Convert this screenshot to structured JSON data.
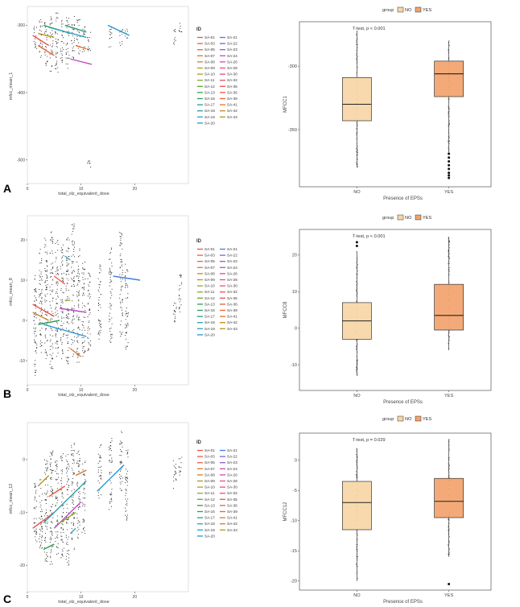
{
  "colors": {
    "no_fill": "#f7d6a6",
    "yes_fill": "#f2a36c",
    "box_stroke": "#333333",
    "scatter_point": "#222222",
    "panel_border": "#cccccc",
    "text": "#444444",
    "id_colors": [
      "#e8544c",
      "#ed5b43",
      "#e7623a",
      "#dd7430",
      "#c98326",
      "#b8941f",
      "#9fa222",
      "#84ab2c",
      "#5ca63b",
      "#2fa14e",
      "#2c9c67",
      "#2a9b86",
      "#2f9ea7",
      "#2ba4c2",
      "#2396d4",
      "#3f7fe0",
      "#6c68dc",
      "#9757d1",
      "#bd4cc2",
      "#d846ad",
      "#e64b93",
      "#ea4e7b",
      "#e9506a"
    ]
  },
  "legend": {
    "title": "ID",
    "ids": [
      "SA-01",
      "SA-03",
      "SA-05",
      "SA-07",
      "SA-08",
      "SA-09",
      "SA-10",
      "SA-11",
      "SA-12",
      "SA-13",
      "SA-16",
      "SA-17",
      "SA-18",
      "SA-19",
      "SA-20",
      "SA-21",
      "SA-22",
      "SA-23",
      "SA-24",
      "SA-26",
      "SA-28",
      "SA-30",
      "SA-32",
      "SA-35",
      "SA-36",
      "SA-39",
      "SA-41",
      "SA-42",
      "SA-43"
    ]
  },
  "chart_data": [
    {
      "panel_letter": "A",
      "type": "scatter",
      "title": "",
      "xlabel": "total_olz_equivalent_dose",
      "ylabel": "mfcc_mean_1",
      "xlim": [
        0,
        30
      ],
      "ylim": [
        -535,
        -272
      ],
      "x_ticks": [
        0,
        10,
        20
      ],
      "y_ticks": [
        -300,
        -400,
        -500
      ],
      "x_tick_labels": [
        "0",
        "10",
        "20"
      ],
      "y_tick_labels": [
        "-300",
        "-400",
        "-500"
      ],
      "columns": [
        {
          "x": 1.5,
          "lo": -340,
          "hi": -300
        },
        {
          "x": 2.5,
          "lo": -350,
          "hi": -290
        },
        {
          "x": 3.5,
          "lo": -360,
          "hi": -295
        },
        {
          "x": 4.5,
          "lo": -370,
          "hi": -285
        },
        {
          "x": 5.5,
          "lo": -375,
          "hi": -280
        },
        {
          "x": 6.5,
          "lo": -355,
          "hi": -290
        },
        {
          "x": 7.5,
          "lo": -365,
          "hi": -285
        },
        {
          "x": 8.5,
          "lo": -350,
          "hi": -282
        },
        {
          "x": 9.5,
          "lo": -345,
          "hi": -290
        },
        {
          "x": 10.5,
          "lo": -345,
          "hi": -300
        },
        {
          "x": 11.5,
          "lo": -340,
          "hi": -300
        },
        {
          "x": 15.5,
          "lo": -335,
          "hi": -300
        },
        {
          "x": 17.5,
          "lo": -330,
          "hi": -305
        },
        {
          "x": 18.5,
          "lo": -320,
          "hi": -305
        },
        {
          "x": 27.5,
          "lo": -330,
          "hi": -305
        },
        {
          "x": 28.5,
          "lo": -310,
          "hi": -295
        },
        {
          "x": 11.5,
          "lo": -515,
          "hi": -500
        }
      ],
      "lines": [
        {
          "x1": 1,
          "x2": 4,
          "y1": -315,
          "y2": -330,
          "color_index": 0
        },
        {
          "x1": 2,
          "x2": 5,
          "y1": -330,
          "y2": -345,
          "color_index": 2
        },
        {
          "x1": 3,
          "x2": 8,
          "y1": -300,
          "y2": -312,
          "color_index": 9
        },
        {
          "x1": 4,
          "x2": 11,
          "y1": -303,
          "y2": -318,
          "color_index": 13
        },
        {
          "x1": 7,
          "x2": 11,
          "y1": -300,
          "y2": -310,
          "color_index": 10
        },
        {
          "x1": 8,
          "x2": 12,
          "y1": -350,
          "y2": -358,
          "color_index": 18
        },
        {
          "x1": 15,
          "x2": 19,
          "y1": -300,
          "y2": -315,
          "color_index": 14
        },
        {
          "x1": 9,
          "x2": 11,
          "y1": -330,
          "y2": -335,
          "color_index": 3
        },
        {
          "x1": 2,
          "x2": 5,
          "y1": -312,
          "y2": -318,
          "color_index": 5
        }
      ]
    },
    {
      "panel_letter": "A",
      "type": "box",
      "title": "",
      "annotation": "T-test,  p < 0.001",
      "xlabel": "Presence of EPSs",
      "ylabel": "MFCC1",
      "legend_title": "group",
      "categories": [
        "NO",
        "YES"
      ],
      "ylim": [
        -395,
        -265
      ],
      "y_ticks": [
        -300,
        -350
      ],
      "y_tick_labels": [
        "-300",
        "-350"
      ],
      "groups": [
        {
          "name": "NO",
          "q1": -343,
          "median": -330,
          "q3": -309,
          "whisker_low": -380,
          "whisker_high": -272,
          "outliers": []
        },
        {
          "name": "YES",
          "q1": -324,
          "median": -306,
          "q3": -296,
          "whisker_low": -368,
          "whisker_high": -280,
          "outliers": [
            -369,
            -372,
            -375,
            -378,
            -381,
            -384,
            -386,
            -388
          ]
        }
      ]
    },
    {
      "panel_letter": "B",
      "type": "scatter",
      "title": "",
      "xlabel": "total_olz_equivalent_dose",
      "ylabel": "mfcc_mean_8",
      "xlim": [
        0,
        30
      ],
      "ylim": [
        -16,
        26
      ],
      "x_ticks": [
        0,
        10,
        20
      ],
      "y_ticks": [
        20,
        10,
        0,
        -10
      ],
      "x_tick_labels": [
        "0",
        "10",
        "20"
      ],
      "y_tick_labels": [
        "20",
        "10",
        "0",
        "-10"
      ],
      "columns": [
        {
          "x": 1.5,
          "lo": -14,
          "hi": 12
        },
        {
          "x": 2.5,
          "lo": -8,
          "hi": 18
        },
        {
          "x": 3.5,
          "lo": -10,
          "hi": 22
        },
        {
          "x": 4.5,
          "lo": -12,
          "hi": 22
        },
        {
          "x": 5.5,
          "lo": -9,
          "hi": 20
        },
        {
          "x": 6.5,
          "lo": -10,
          "hi": 19
        },
        {
          "x": 7.5,
          "lo": -12,
          "hi": 21
        },
        {
          "x": 8.5,
          "lo": -9,
          "hi": 24
        },
        {
          "x": 9.5,
          "lo": -11,
          "hi": 18
        },
        {
          "x": 10.5,
          "lo": -10,
          "hi": 15
        },
        {
          "x": 11.5,
          "lo": -8,
          "hi": 12
        },
        {
          "x": 13.5,
          "lo": -5,
          "hi": 14
        },
        {
          "x": 15.5,
          "lo": -6,
          "hi": 18
        },
        {
          "x": 17.5,
          "lo": -4,
          "hi": 22
        },
        {
          "x": 18.5,
          "lo": -8,
          "hi": 14
        },
        {
          "x": 27.5,
          "lo": -1,
          "hi": 6
        },
        {
          "x": 28.5,
          "lo": 2,
          "hi": 12
        }
      ],
      "lines": [
        {
          "x1": 1,
          "x2": 5,
          "y1": 4,
          "y2": 1,
          "color_index": 0
        },
        {
          "x1": 1,
          "x2": 4,
          "y1": 2,
          "y2": 0,
          "color_index": 4
        },
        {
          "x1": 2,
          "x2": 6,
          "y1": -1,
          "y2": 0,
          "color_index": 9
        },
        {
          "x1": 3,
          "x2": 11,
          "y1": -1,
          "y2": -4,
          "color_index": 14
        },
        {
          "x1": 5,
          "x2": 7,
          "y1": 11,
          "y2": 9,
          "color_index": 1
        },
        {
          "x1": 6,
          "x2": 11,
          "y1": 3,
          "y2": 2,
          "color_index": 18
        },
        {
          "x1": 7,
          "x2": 8,
          "y1": 16,
          "y2": 15,
          "color_index": 13
        },
        {
          "x1": 8,
          "x2": 10,
          "y1": -7,
          "y2": -9,
          "color_index": 3
        },
        {
          "x1": 16,
          "x2": 21,
          "y1": 11,
          "y2": 10,
          "color_index": 15
        },
        {
          "x1": 7,
          "x2": 8,
          "y1": 5,
          "y2": 5,
          "color_index": 6
        }
      ]
    },
    {
      "panel_letter": "B",
      "type": "box",
      "title": "",
      "annotation": "T-test,  p < 0.001",
      "xlabel": "Presence of EPSs",
      "ylabel": "MFCC8",
      "legend_title": "group",
      "categories": [
        "NO",
        "YES"
      ],
      "ylim": [
        -17,
        27
      ],
      "y_ticks": [
        20,
        10,
        0,
        -10
      ],
      "y_tick_labels": [
        "20",
        "10",
        "0",
        "-10"
      ],
      "groups": [
        {
          "name": "NO",
          "q1": -3,
          "median": 2,
          "q3": 7,
          "whisker_low": -13,
          "whisker_high": 21,
          "outliers": [
            22.5,
            23.5
          ]
        },
        {
          "name": "YES",
          "q1": -0.5,
          "median": 3.5,
          "q3": 12,
          "whisker_low": -6,
          "whisker_high": 25,
          "outliers": []
        }
      ]
    },
    {
      "panel_letter": "C",
      "type": "scatter",
      "title": "",
      "xlabel": "total_olz_equivalent_dose",
      "ylabel": "mfcc_mean_12",
      "xlim": [
        0,
        30
      ],
      "ylim": [
        -25,
        7
      ],
      "x_ticks": [
        0,
        10,
        20
      ],
      "y_ticks": [
        0,
        -10,
        -20
      ],
      "x_tick_labels": [
        "0",
        "10",
        "20"
      ],
      "y_tick_labels": [
        "0",
        "-10",
        "-20"
      ],
      "columns": [
        {
          "x": 1.5,
          "lo": -16,
          "hi": -4
        },
        {
          "x": 2.5,
          "lo": -17,
          "hi": -2
        },
        {
          "x": 3.5,
          "lo": -20,
          "hi": 0
        },
        {
          "x": 4.5,
          "lo": -22,
          "hi": 2
        },
        {
          "x": 5.5,
          "lo": -18,
          "hi": 0
        },
        {
          "x": 6.5,
          "lo": -19,
          "hi": 2
        },
        {
          "x": 7.5,
          "lo": -20,
          "hi": 1
        },
        {
          "x": 8.5,
          "lo": -17,
          "hi": 4
        },
        {
          "x": 9.5,
          "lo": -15,
          "hi": 2
        },
        {
          "x": 10.5,
          "lo": -14,
          "hi": 0
        },
        {
          "x": 13.5,
          "lo": -8,
          "hi": 3
        },
        {
          "x": 15.5,
          "lo": -10,
          "hi": 4
        },
        {
          "x": 17.5,
          "lo": -6,
          "hi": 6
        },
        {
          "x": 18.5,
          "lo": -12,
          "hi": 2
        },
        {
          "x": 27.5,
          "lo": -6,
          "hi": 0
        },
        {
          "x": 28.5,
          "lo": -3,
          "hi": 1
        }
      ],
      "lines": [
        {
          "x1": 1,
          "x2": 5,
          "y1": -13,
          "y2": -10,
          "color_index": 0
        },
        {
          "x1": 2,
          "x2": 4,
          "y1": -5,
          "y2": -3,
          "color_index": 5
        },
        {
          "x1": 3,
          "x2": 5,
          "y1": -17,
          "y2": -16,
          "color_index": 9
        },
        {
          "x1": 3,
          "x2": 11,
          "y1": -12,
          "y2": -4,
          "color_index": 12
        },
        {
          "x1": 4,
          "x2": 7,
          "y1": -7,
          "y2": -5,
          "color_index": 1
        },
        {
          "x1": 5,
          "x2": 10,
          "y1": -13,
          "y2": -8,
          "color_index": 18
        },
        {
          "x1": 6,
          "x2": 9,
          "y1": -12,
          "y2": -10,
          "color_index": 7
        },
        {
          "x1": 8,
          "x2": 9,
          "y1": -14,
          "y2": -13,
          "color_index": 13
        },
        {
          "x1": 9,
          "x2": 11,
          "y1": -3,
          "y2": -2,
          "color_index": 3
        },
        {
          "x1": 13,
          "x2": 18,
          "y1": -6,
          "y2": -1,
          "color_index": 14
        }
      ]
    },
    {
      "panel_letter": "C",
      "type": "box",
      "title": "",
      "annotation": "T-test, p = 0.029",
      "xlabel": "Presence of EPSs",
      "ylabel": "MFCC12",
      "legend_title": "group",
      "categories": [
        "NO",
        "YES"
      ],
      "ylim": [
        -21.5,
        4.5
      ],
      "y_ticks": [
        0,
        -5,
        -10,
        -15,
        -20
      ],
      "y_tick_labels": [
        "0",
        "-5",
        "-10",
        "-15",
        "-20"
      ],
      "groups": [
        {
          "name": "NO",
          "q1": -11.5,
          "median": -7,
          "q3": -3.5,
          "whisker_low": -20,
          "whisker_high": 2,
          "outliers": []
        },
        {
          "name": "YES",
          "q1": -9.5,
          "median": -6.8,
          "q3": -3,
          "whisker_low": -16,
          "whisker_high": 3.5,
          "outliers": [
            -20.5
          ]
        }
      ]
    }
  ]
}
